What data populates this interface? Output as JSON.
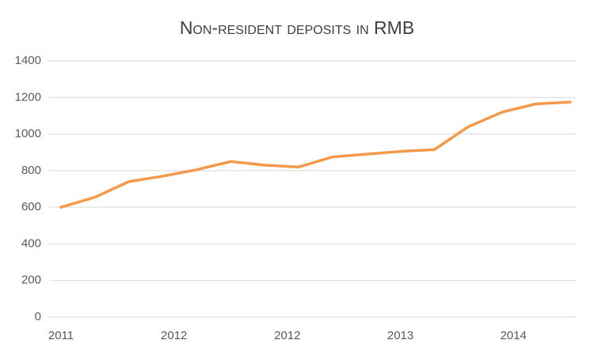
{
  "chart_data": {
    "type": "line",
    "title": "Non-resident deposits in RMB",
    "x": [
      0,
      1,
      2,
      3,
      4,
      5,
      6,
      7,
      8,
      9,
      10,
      11,
      12,
      13,
      14,
      15
    ],
    "series": [
      {
        "color": "#f4994a",
        "values": [
          600,
          655,
          740,
          770,
          805,
          850,
          830,
          820,
          875,
          890,
          905,
          915,
          1040,
          1120,
          1165,
          1175
        ]
      }
    ],
    "xlim": [
      -0.35,
      15.19
    ],
    "xticks": [
      {
        "value": 0,
        "label": "2011"
      },
      {
        "value": 3.33,
        "label": "2012"
      },
      {
        "value": 6.67,
        "label": "2012"
      },
      {
        "value": 10,
        "label": "2013"
      },
      {
        "value": 13.33,
        "label": "2014"
      }
    ],
    "ylim": [
      0,
      1400
    ],
    "yticks": [
      0,
      200,
      400,
      600,
      800,
      1000,
      1200,
      1400
    ],
    "grid": true
  }
}
